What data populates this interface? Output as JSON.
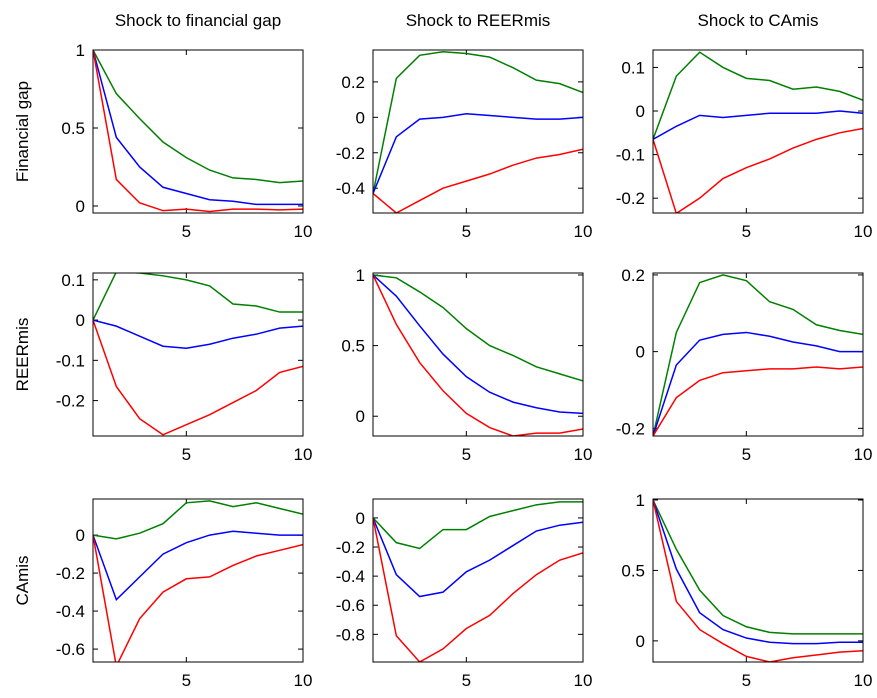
{
  "chart_data": [
    {
      "type": "line",
      "title": "Shock to financial gap",
      "ylabel": "Financial gap",
      "x": [
        1,
        2,
        3,
        4,
        5,
        6,
        7,
        8,
        9,
        10
      ],
      "xlim": [
        1,
        10
      ],
      "xticks": [
        5,
        10
      ],
      "ylim": [
        -0.045,
        1
      ],
      "yticks": [
        0,
        0.5,
        1
      ],
      "series": [
        {
          "color": "#008000",
          "values": [
            1,
            0.72,
            0.56,
            0.41,
            0.31,
            0.23,
            0.18,
            0.17,
            0.15,
            0.16
          ]
        },
        {
          "color": "#0000ff",
          "values": [
            1,
            0.44,
            0.25,
            0.12,
            0.08,
            0.04,
            0.03,
            0.01,
            0.01,
            0.01
          ]
        },
        {
          "color": "#ff0000",
          "values": [
            1,
            0.17,
            0.02,
            -0.03,
            -0.02,
            -0.035,
            -0.02,
            -0.02,
            -0.025,
            -0.02
          ]
        }
      ]
    },
    {
      "type": "line",
      "title": "Shock to REERmis",
      "x": [
        1,
        2,
        3,
        4,
        5,
        6,
        7,
        8,
        9,
        10
      ],
      "xlim": [
        1,
        10
      ],
      "xticks": [
        5,
        10
      ],
      "ylim": [
        -0.54,
        0.38
      ],
      "yticks": [
        -0.4,
        -0.2,
        0,
        0.2
      ],
      "series": [
        {
          "color": "#008000",
          "values": [
            -0.43,
            0.22,
            0.35,
            0.37,
            0.36,
            0.34,
            0.28,
            0.21,
            0.19,
            0.14
          ]
        },
        {
          "color": "#0000ff",
          "values": [
            -0.43,
            -0.11,
            -0.01,
            0,
            0.02,
            0.01,
            0,
            -0.01,
            -0.01,
            0
          ]
        },
        {
          "color": "#ff0000",
          "values": [
            -0.43,
            -0.54,
            -0.47,
            -0.4,
            -0.36,
            -0.32,
            -0.27,
            -0.23,
            -0.21,
            -0.18
          ]
        }
      ]
    },
    {
      "type": "line",
      "title": "Shock to CAmis",
      "x": [
        1,
        2,
        3,
        4,
        5,
        6,
        7,
        8,
        9,
        10
      ],
      "xlim": [
        1,
        10
      ],
      "xticks": [
        5,
        10
      ],
      "ylim": [
        -0.234,
        0.14
      ],
      "yticks": [
        -0.2,
        -0.1,
        0,
        0.1
      ],
      "series": [
        {
          "color": "#008000",
          "values": [
            -0.065,
            0.08,
            0.135,
            0.1,
            0.075,
            0.07,
            0.05,
            0.055,
            0.045,
            0.025
          ]
        },
        {
          "color": "#0000ff",
          "values": [
            -0.065,
            -0.035,
            -0.01,
            -0.015,
            -0.01,
            -0.005,
            -0.005,
            -0.005,
            0,
            -0.005
          ]
        },
        {
          "color": "#ff0000",
          "values": [
            -0.065,
            -0.235,
            -0.2,
            -0.155,
            -0.13,
            -0.11,
            -0.085,
            -0.065,
            -0.05,
            -0.04
          ]
        }
      ]
    },
    {
      "type": "line",
      "ylabel": "REERmis",
      "x": [
        1,
        2,
        3,
        4,
        5,
        6,
        7,
        8,
        9,
        10
      ],
      "xlim": [
        1,
        10
      ],
      "xticks": [
        5,
        10
      ],
      "ylim": [
        -0.288,
        0.117
      ],
      "yticks": [
        -0.2,
        -0.1,
        0,
        0.1
      ],
      "series": [
        {
          "color": "#008000",
          "values": [
            0,
            0.12,
            0.117,
            0.11,
            0.1,
            0.085,
            0.04,
            0.035,
            0.02,
            0.02
          ]
        },
        {
          "color": "#0000ff",
          "values": [
            0,
            -0.015,
            -0.04,
            -0.065,
            -0.07,
            -0.06,
            -0.045,
            -0.035,
            -0.02,
            -0.015
          ]
        },
        {
          "color": "#ff0000",
          "values": [
            0,
            -0.165,
            -0.245,
            -0.285,
            -0.26,
            -0.235,
            -0.205,
            -0.175,
            -0.13,
            -0.115
          ]
        }
      ]
    },
    {
      "type": "line",
      "x": [
        1,
        2,
        3,
        4,
        5,
        6,
        7,
        8,
        9,
        10
      ],
      "xlim": [
        1,
        10
      ],
      "xticks": [
        5,
        10
      ],
      "ylim": [
        -0.14,
        1.014
      ],
      "yticks": [
        0,
        0.5,
        1
      ],
      "series": [
        {
          "color": "#008000",
          "values": [
            1,
            0.98,
            0.88,
            0.77,
            0.62,
            0.5,
            0.43,
            0.35,
            0.3,
            0.25
          ]
        },
        {
          "color": "#0000ff",
          "values": [
            1,
            0.85,
            0.64,
            0.44,
            0.28,
            0.17,
            0.1,
            0.06,
            0.03,
            0.02
          ]
        },
        {
          "color": "#ff0000",
          "values": [
            1,
            0.65,
            0.38,
            0.18,
            0.02,
            -0.08,
            -0.14,
            -0.12,
            -0.12,
            -0.09
          ]
        }
      ]
    },
    {
      "type": "line",
      "x": [
        1,
        2,
        3,
        4,
        5,
        6,
        7,
        8,
        9,
        10
      ],
      "xlim": [
        1,
        10
      ],
      "xticks": [
        5,
        10
      ],
      "ylim": [
        -0.22,
        0.205
      ],
      "yticks": [
        -0.2,
        0,
        0.2
      ],
      "series": [
        {
          "color": "#008000",
          "values": [
            -0.22,
            0.05,
            0.18,
            0.2,
            0.185,
            0.13,
            0.11,
            0.07,
            0.055,
            0.045
          ]
        },
        {
          "color": "#0000ff",
          "values": [
            -0.22,
            -0.035,
            0.03,
            0.045,
            0.05,
            0.04,
            0.025,
            0.015,
            0,
            0
          ]
        },
        {
          "color": "#ff0000",
          "values": [
            -0.22,
            -0.12,
            -0.075,
            -0.055,
            -0.05,
            -0.045,
            -0.045,
            -0.04,
            -0.045,
            -0.04
          ]
        }
      ]
    },
    {
      "type": "line",
      "ylabel": "CAmis",
      "x": [
        1,
        2,
        3,
        4,
        5,
        6,
        7,
        8,
        9,
        10
      ],
      "xlim": [
        1,
        10
      ],
      "xticks": [
        5,
        10
      ],
      "ylim": [
        -0.668,
        0.19
      ],
      "yticks": [
        -0.6,
        -0.4,
        -0.2,
        0
      ],
      "series": [
        {
          "color": "#008000",
          "values": [
            0,
            -0.02,
            0.01,
            0.06,
            0.17,
            0.18,
            0.15,
            0.17,
            0.14,
            0.11
          ]
        },
        {
          "color": "#0000ff",
          "values": [
            0,
            -0.34,
            -0.22,
            -0.1,
            -0.04,
            0,
            0.02,
            0.01,
            0,
            0
          ]
        },
        {
          "color": "#ff0000",
          "values": [
            0,
            -0.69,
            -0.44,
            -0.3,
            -0.23,
            -0.22,
            -0.16,
            -0.11,
            -0.08,
            -0.05
          ]
        }
      ]
    },
    {
      "type": "line",
      "x": [
        1,
        2,
        3,
        4,
        5,
        6,
        7,
        8,
        9,
        10
      ],
      "xlim": [
        1,
        10
      ],
      "xticks": [
        5,
        10
      ],
      "ylim": [
        -0.99,
        0.13
      ],
      "yticks": [
        -0.8,
        -0.6,
        -0.4,
        -0.2,
        0
      ],
      "series": [
        {
          "color": "#008000",
          "values": [
            0,
            -0.17,
            -0.21,
            -0.08,
            -0.08,
            0.01,
            0.05,
            0.09,
            0.11,
            0.11
          ]
        },
        {
          "color": "#0000ff",
          "values": [
            0,
            -0.39,
            -0.54,
            -0.51,
            -0.37,
            -0.29,
            -0.19,
            -0.09,
            -0.05,
            -0.03
          ]
        },
        {
          "color": "#ff0000",
          "values": [
            0,
            -0.81,
            -0.99,
            -0.9,
            -0.76,
            -0.67,
            -0.52,
            -0.39,
            -0.29,
            -0.24
          ]
        }
      ]
    },
    {
      "type": "line",
      "x": [
        1,
        2,
        3,
        4,
        5,
        6,
        7,
        8,
        9,
        10
      ],
      "xlim": [
        1,
        10
      ],
      "xticks": [
        5,
        10
      ],
      "ylim": [
        -0.15,
        1.007
      ],
      "yticks": [
        0,
        0.5,
        1
      ],
      "series": [
        {
          "color": "#008000",
          "values": [
            1,
            0.65,
            0.36,
            0.18,
            0.1,
            0.06,
            0.05,
            0.05,
            0.05,
            0.05
          ]
        },
        {
          "color": "#0000ff",
          "values": [
            1,
            0.51,
            0.2,
            0.08,
            0.02,
            -0.01,
            -0.02,
            -0.02,
            -0.01,
            -0.01
          ]
        },
        {
          "color": "#ff0000",
          "values": [
            1,
            0.28,
            0.08,
            -0.02,
            -0.11,
            -0.15,
            -0.12,
            -0.1,
            -0.08,
            -0.07
          ]
        }
      ]
    }
  ]
}
